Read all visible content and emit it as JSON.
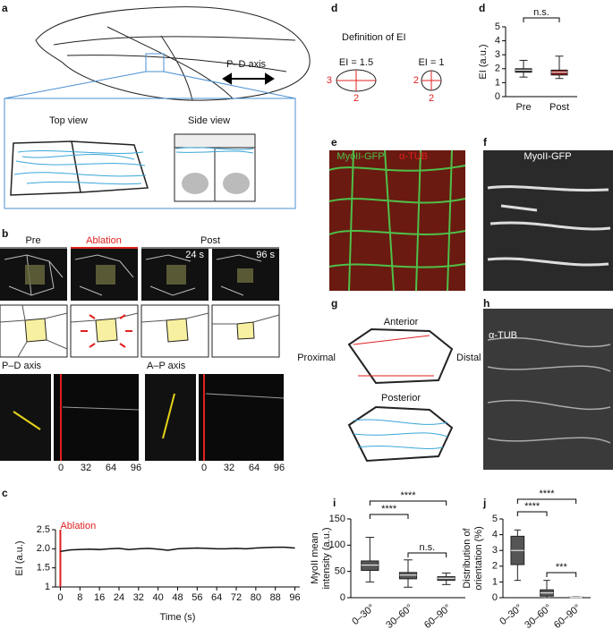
{
  "panels": {
    "a": {
      "label": "a",
      "axis": "P–D axis",
      "top_view": "Top view",
      "side_view": "Side view"
    },
    "b": {
      "label": "b",
      "pre": "Pre",
      "ablation": "Ablation",
      "post": "Post",
      "time1": "24 s",
      "time2": "96 s",
      "pd_axis": "P–D axis",
      "ap_axis": "A–P axis",
      "kymograph_ticks": [
        0,
        32,
        64,
        96
      ]
    },
    "d": {
      "label": "d",
      "definition": "Definition of EI",
      "ei1": "EI = 1.5",
      "ei2": "EI = 1",
      "dims": [
        3,
        2,
        2,
        2
      ]
    },
    "e": {
      "label": "e",
      "stain1": "MyoII-GFP",
      "stain2": "α-TUB"
    },
    "f": {
      "label": "f",
      "stain": "MyoII-GFP"
    },
    "g": {
      "label": "g",
      "anterior": "Anterior",
      "proximal": "Proximal",
      "distal": "Distal",
      "posterior": "Posterior"
    },
    "h": {
      "label": "h",
      "stain": "α-TUB"
    }
  },
  "chart_data": [
    {
      "type": "line",
      "panel_label": "c",
      "annotation": "Ablation",
      "y_label": "EI (a.u.)",
      "x_label": "Time (s)",
      "x": [
        0,
        4,
        8,
        12,
        16,
        20,
        24,
        28,
        32,
        36,
        40,
        44,
        48,
        52,
        56,
        60,
        64,
        68,
        72,
        76,
        80,
        84,
        88,
        92,
        96
      ],
      "series": [
        {
          "color": "#111111",
          "values": [
            1.93,
            1.97,
            1.98,
            1.99,
            1.98,
            2.0,
            2.01,
            1.98,
            2.0,
            2.01,
            1.99,
            1.96,
            2.0,
            2.01,
            2.02,
            2.01,
            2.0,
            2.0,
            2.01,
            2.0,
            2.02,
            2.03,
            2.04,
            2.04,
            2.02
          ]
        }
      ],
      "annotation_color": "#e02020",
      "xlim": [
        -2,
        98
      ],
      "xticks": [
        0,
        8,
        16,
        24,
        32,
        40,
        48,
        56,
        64,
        72,
        80,
        88,
        96
      ],
      "ylim": [
        1,
        2.5
      ],
      "yticks": [
        1,
        1.5,
        {
          "value": 2,
          "label": "2.0"
        },
        2.5
      ]
    },
    {
      "type": "box",
      "panel_label": "d",
      "y_label": "EI (a.u.)",
      "categories": [
        "Pre",
        "Post"
      ],
      "boxes": [
        {
          "min": 1.4,
          "q1": 1.75,
          "median": 1.9,
          "q3": 2.0,
          "max": 2.6
        },
        {
          "min": 1.3,
          "q1": 1.55,
          "median": 1.75,
          "q3": 1.9,
          "max": 2.9
        }
      ],
      "colors": [
        "#3a3a3a",
        "#8b1a1a"
      ],
      "ylim": [
        0,
        5
      ],
      "yticks": [
        0,
        1,
        2,
        3,
        4,
        5
      ],
      "significance": [
        "n.s."
      ]
    },
    {
      "type": "box",
      "panel_label": "i",
      "y_label": [
        "MyoII mean",
        "intensity (a.u.)"
      ],
      "categories": [
        "0–30°",
        "30–60°",
        "60–90°"
      ],
      "boxes": [
        {
          "min": 30,
          "q1": 52,
          "median": 62,
          "q3": 70,
          "max": 115
        },
        {
          "min": 20,
          "q1": 36,
          "median": 43,
          "q3": 48,
          "max": 72
        },
        {
          "min": 25,
          "q1": 33,
          "median": 37,
          "q3": 40,
          "max": 47
        }
      ],
      "colors": [
        "#555555",
        "#555555",
        "#555555"
      ],
      "ylim": [
        0,
        150
      ],
      "yticks": [
        0,
        50,
        100,
        150
      ],
      "significance": [
        "****",
        "****",
        "n.s."
      ]
    },
    {
      "type": "box",
      "panel_label": "j",
      "y_label": [
        "Distribution of",
        "orientation (%)"
      ],
      "categories": [
        "0–30°",
        "30–60°",
        "60–90°"
      ],
      "boxes": [
        {
          "min": 1.1,
          "q1": 2.1,
          "median": 3.0,
          "q3": 3.9,
          "max": 4.3
        },
        {
          "min": 0,
          "q1": 0.1,
          "median": 0.3,
          "q3": 0.5,
          "max": 1.1
        },
        {
          "min": 0,
          "q1": 0,
          "median": 0.02,
          "q3": 0.04,
          "max": 0.05
        }
      ],
      "colors": [
        "#555555",
        "#555555",
        "#555555"
      ],
      "ylim": [
        0,
        5
      ],
      "yticks": [
        0,
        1,
        2,
        3,
        4,
        5
      ],
      "significance": [
        "****",
        "****",
        "***"
      ]
    }
  ]
}
